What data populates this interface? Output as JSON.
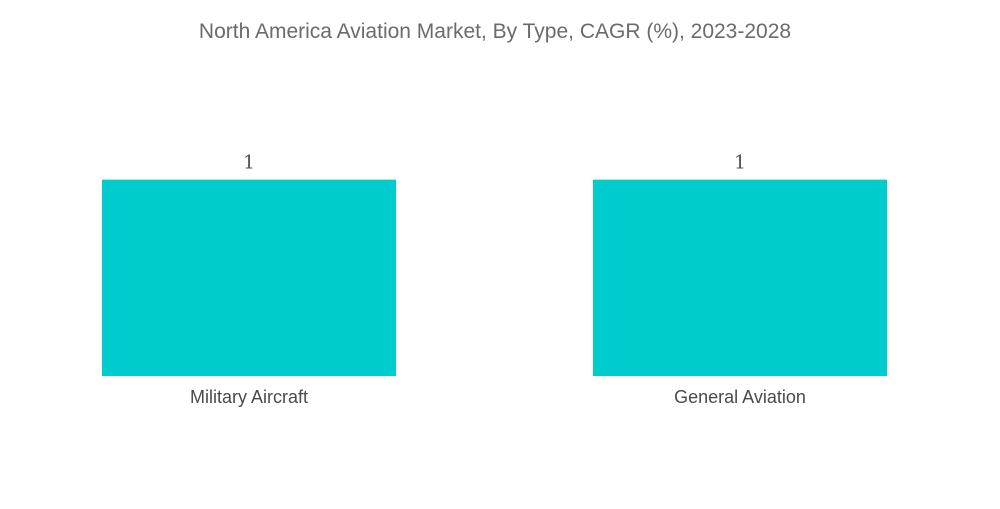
{
  "chart_data": {
    "type": "bar",
    "title": "North America Aviation Market, By Type, CAGR (%), 2023-2028",
    "categories": [
      "Military Aircraft",
      "General Aviation"
    ],
    "values": [
      1,
      1
    ],
    "data_labels": [
      "1",
      "1"
    ],
    "xlabel": "",
    "ylabel": "",
    "ylim": [
      0,
      1.1
    ],
    "grid": false,
    "legend": "none",
    "bar_color": "#00CCCD"
  }
}
